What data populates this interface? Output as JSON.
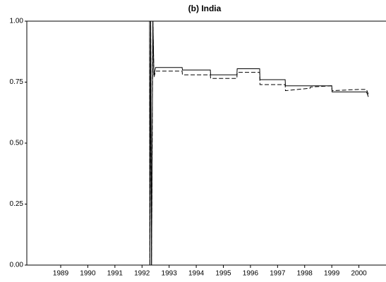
{
  "chart_data": {
    "type": "line",
    "title": "(b) India",
    "x": [
      1988.25,
      1992.78,
      1992.79,
      1992.82,
      1992.85,
      1992.9,
      1992.94,
      1993.0,
      1993.98,
      1993.99,
      1995.02,
      1995.03,
      1996.0,
      1996.01,
      1996.84,
      1996.85,
      1997.78,
      1997.79,
      1998.7,
      1998.71,
      1999.5,
      1999.51,
      2000.5,
      2000.78,
      2000.85
    ],
    "series": [
      {
        "color": "#000000",
        "style": "solid",
        "values": [
          1,
          1,
          0,
          1,
          0,
          1,
          0.78,
          0.81,
          0.81,
          0.8,
          0.8,
          0.78,
          0.78,
          0.805,
          0.805,
          0.76,
          0.76,
          0.735,
          0.735,
          0.735,
          0.735,
          0.71,
          0.71,
          0.71,
          0.69
        ]
      },
      {
        "color": "#000000",
        "style": "dashed",
        "values": [
          1,
          1,
          0,
          1,
          0,
          1,
          0.77,
          0.795,
          0.795,
          0.78,
          0.78,
          0.765,
          0.765,
          0.79,
          0.79,
          0.74,
          0.74,
          0.715,
          0.725,
          0.73,
          0.735,
          0.715,
          0.72,
          0.72,
          0.7
        ]
      }
    ],
    "xlim": [
      1988.25,
      2001.5
    ],
    "xticks": [
      {
        "value": 1989.5,
        "label": "1989"
      },
      {
        "value": 1990.5,
        "label": "1990"
      },
      {
        "value": 1991.5,
        "label": "1991"
      },
      {
        "value": 1992.5,
        "label": "1992"
      },
      {
        "value": 1993.5,
        "label": "1993"
      },
      {
        "value": 1994.5,
        "label": "1994"
      },
      {
        "value": 1995.5,
        "label": "1995"
      },
      {
        "value": 1996.5,
        "label": "1996"
      },
      {
        "value": 1997.5,
        "label": "1997"
      },
      {
        "value": 1998.5,
        "label": "1998"
      },
      {
        "value": 1999.5,
        "label": "1999"
      },
      {
        "value": 2000.5,
        "label": "2000"
      }
    ],
    "ylim": [
      0,
      1
    ],
    "yticks": [
      {
        "value": 0,
        "label": "0.00"
      },
      {
        "value": 0.25,
        "label": "0.25"
      },
      {
        "value": 0.5,
        "label": "0.50"
      },
      {
        "value": 0.75,
        "label": "0.75"
      },
      {
        "value": 1,
        "label": "1.00"
      }
    ]
  }
}
